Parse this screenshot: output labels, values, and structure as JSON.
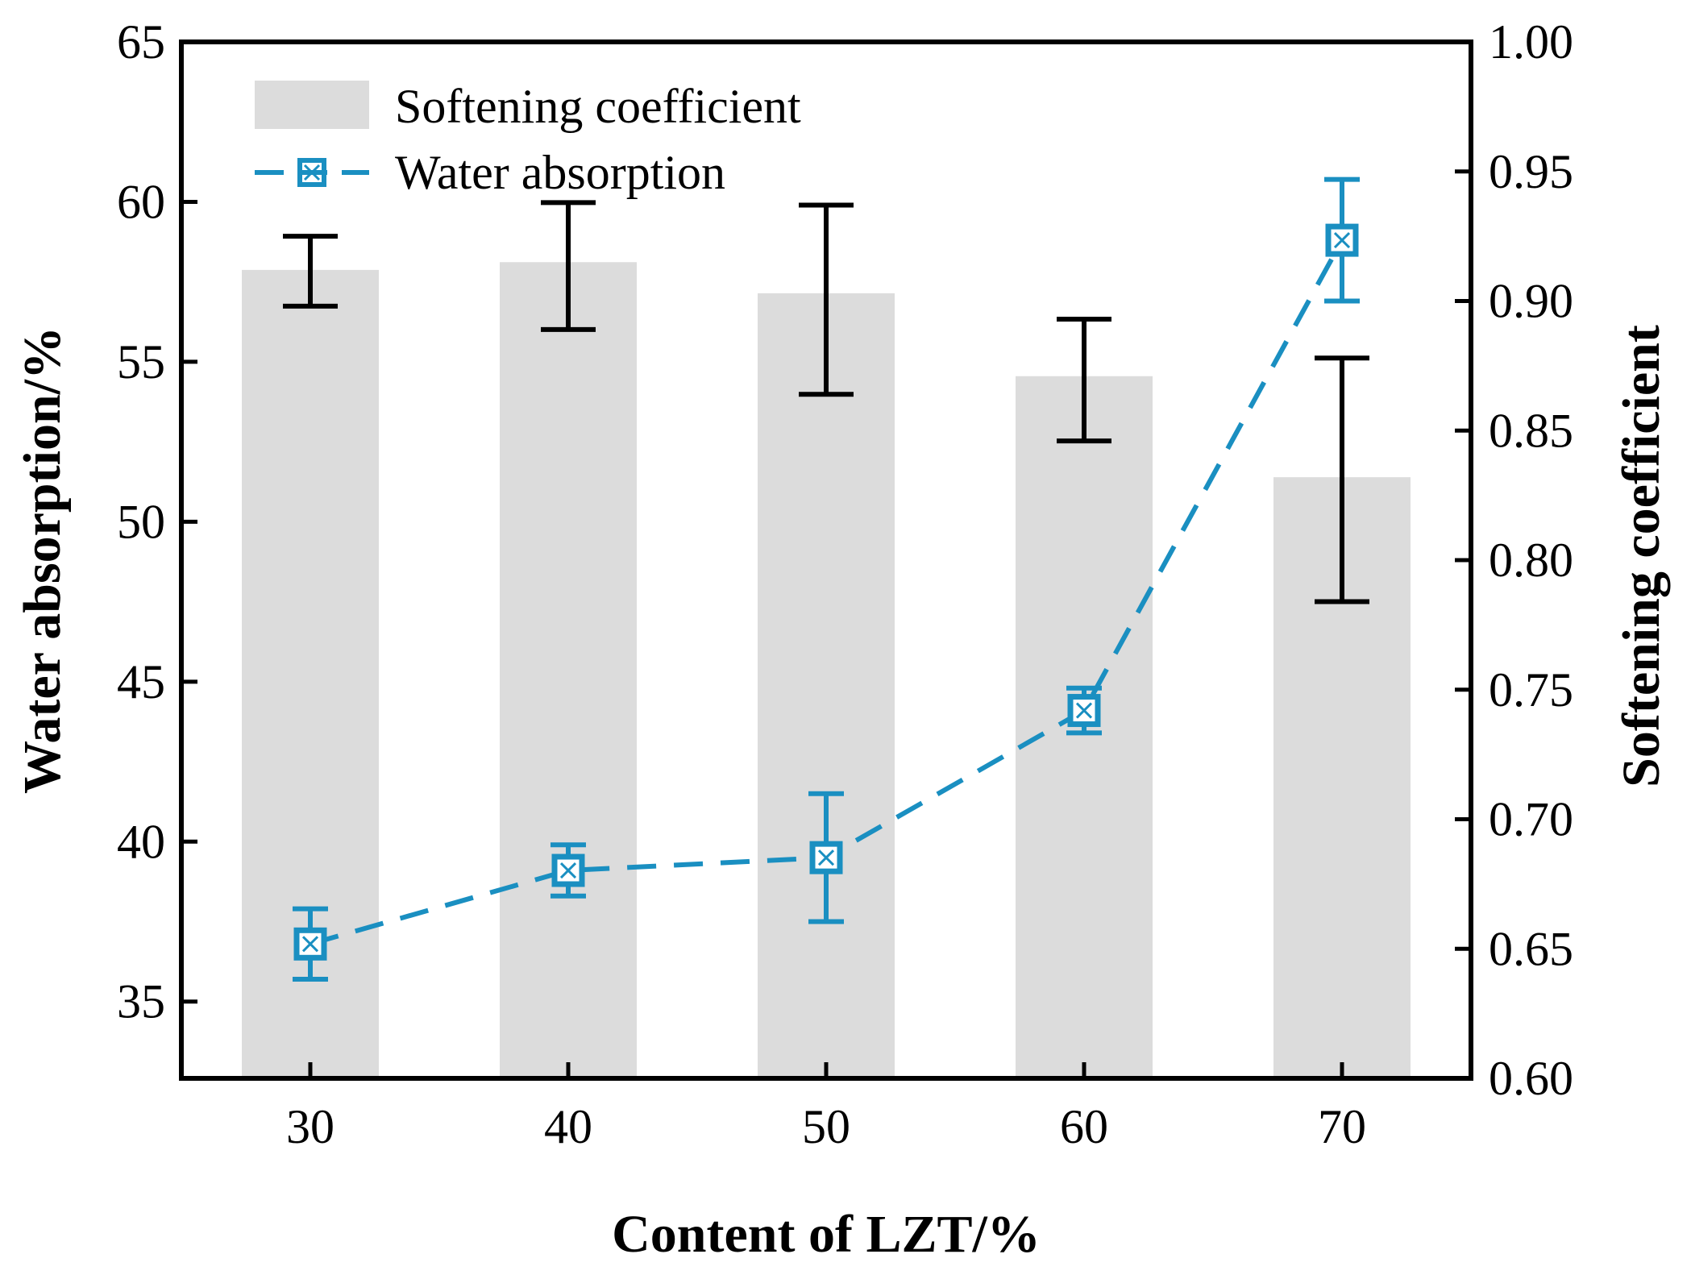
{
  "chart_data": {
    "type": "bar+line",
    "title": "",
    "xlabel": "Content of  LZT/%",
    "ylabel_left": "Water absorption/%",
    "ylabel_right": "Softening coefficient",
    "categories": [
      "30",
      "40",
      "50",
      "60",
      "70"
    ],
    "y_left": {
      "range": [
        32.6,
        65
      ],
      "ticks": [
        35,
        40,
        45,
        50,
        55,
        60,
        65
      ],
      "tick_labels": [
        "35",
        "40",
        "45",
        "50",
        "55",
        "60",
        "65"
      ]
    },
    "y_right": {
      "range": [
        0.6,
        1.0
      ],
      "ticks": [
        0.6,
        0.65,
        0.7,
        0.75,
        0.8,
        0.85,
        0.9,
        0.95,
        1.0
      ],
      "tick_labels": [
        "0.60",
        "0.65",
        "0.70",
        "0.75",
        "0.80",
        "0.85",
        "0.90",
        "0.95",
        "1.00"
      ]
    },
    "series": [
      {
        "name": "Softening coefficient",
        "type": "bar",
        "axis": "right",
        "values": [
          0.912,
          0.915,
          0.903,
          0.871,
          0.832
        ],
        "error_low": [
          0.898,
          0.889,
          0.864,
          0.846,
          0.784
        ],
        "error_high": [
          0.925,
          0.938,
          0.937,
          0.893,
          0.878
        ],
        "color": "#dcdcdc",
        "error_color": "#000000"
      },
      {
        "name": "Water absorption",
        "type": "line",
        "axis": "left",
        "values": [
          36.8,
          39.1,
          39.5,
          44.1,
          58.8
        ],
        "error_low": [
          35.7,
          38.3,
          37.5,
          43.4,
          56.9
        ],
        "error_high": [
          37.9,
          39.9,
          41.5,
          44.8,
          60.7
        ],
        "color": "#1a8fc1"
      }
    ],
    "legend": {
      "position": "top-left",
      "entries": [
        "Softening coefficient",
        "Water absorption"
      ]
    }
  }
}
